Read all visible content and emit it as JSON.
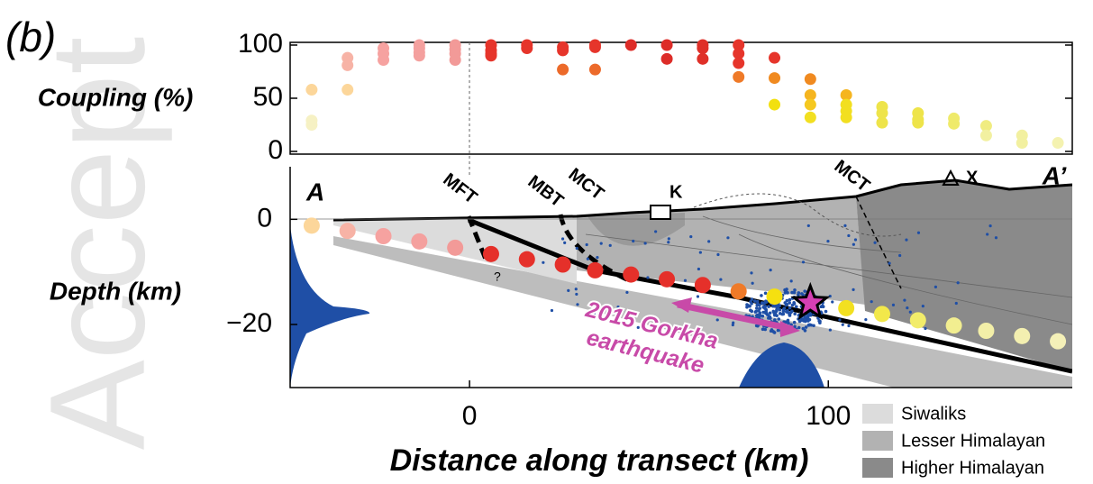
{
  "panel_label": "(b)",
  "watermark": "Accept",
  "chart_data": [
    {
      "type": "scatter",
      "ylabel": "Coupling (%)",
      "xlim": [
        -50,
        168
      ],
      "ylim": [
        0,
        100
      ],
      "yticks": [
        0,
        50,
        100
      ],
      "x": [
        -44,
        -44,
        -44,
        -34,
        -34,
        -34,
        -24,
        -24,
        -24,
        -14,
        -14,
        -14,
        -14,
        -4,
        -4,
        -4,
        -4,
        6,
        6,
        6,
        6,
        16,
        16,
        26,
        26,
        26,
        35,
        35,
        35,
        45,
        55,
        55,
        65,
        65,
        65,
        75,
        75,
        75,
        75,
        85,
        85,
        85,
        95,
        95,
        95,
        95,
        105,
        105,
        105,
        105,
        115,
        115,
        115,
        125,
        125,
        125,
        135,
        135,
        144,
        144,
        154,
        154,
        164
      ],
      "values": [
        58,
        29,
        25,
        88,
        81,
        58,
        97,
        92,
        86,
        100,
        97,
        93,
        90,
        100,
        96,
        92,
        86,
        100,
        95,
        92,
        90,
        100,
        97,
        98,
        95,
        77,
        100,
        98,
        77,
        100,
        100,
        87,
        100,
        97,
        87,
        100,
        92,
        83,
        70,
        88,
        69,
        44,
        68,
        53,
        44,
        32,
        53,
        44,
        38,
        32,
        42,
        36,
        27,
        36,
        30,
        27,
        31,
        26,
        24,
        15,
        15,
        8,
        8
      ],
      "colors": [
        "#fcd69a",
        "#f6f1c4",
        "#f6f1c4",
        "#f7b3a6",
        "#f7b3a6",
        "#fcd69a",
        "#f6a2a0",
        "#f6a2a0",
        "#f6a2a0",
        "#f4a09e",
        "#f4a09e",
        "#f4a09e",
        "#f4a09e",
        "#f29a98",
        "#f29a98",
        "#f29a98",
        "#f29a98",
        "#e6352b",
        "#e6352b",
        "#e6352b",
        "#e6352b",
        "#e6352b",
        "#e6352b",
        "#e6352b",
        "#e6352b",
        "#ec6a2a",
        "#e6352b",
        "#e6352b",
        "#ec6a2a",
        "#dd2c28",
        "#dd2c28",
        "#dd2c28",
        "#df3028",
        "#df3028",
        "#df3028",
        "#e6352b",
        "#e6352b",
        "#e6352b",
        "#ef7a28",
        "#e6352b",
        "#f08a20",
        "#f2e010",
        "#f08a20",
        "#f5b520",
        "#f5c820",
        "#f2df20",
        "#f5b520",
        "#f2df20",
        "#f2df20",
        "#f2df20",
        "#eee44a",
        "#eee44a",
        "#eee44a",
        "#eee44a",
        "#eee44a",
        "#eee44a",
        "#efea6a",
        "#efea6a",
        "#f0ec80",
        "#f2f0a0",
        "#f2f0a0",
        "#f2f0a0",
        "#f4f2b0"
      ]
    },
    {
      "type": "cross-section",
      "ylabel": "Depth (km)",
      "xlabel": "Distance along transect (km)",
      "xlim": [
        -50,
        168
      ],
      "xticks": [
        0,
        100
      ],
      "ylim": [
        -32,
        10
      ],
      "yticks": [
        0,
        {
          "value": -20,
          "label": "−20"
        }
      ],
      "x": [
        -44,
        -34,
        -24,
        -14,
        -4,
        6,
        16,
        26,
        35,
        45,
        55,
        65,
        75,
        85,
        105,
        115,
        125,
        135,
        144,
        154,
        164
      ],
      "values": [
        -1.2,
        -2.2,
        -3.2,
        -4.2,
        -5.4,
        -6.6,
        -7.6,
        -8.6,
        -9.7,
        -10.5,
        -11.4,
        -12.5,
        -13.7,
        -14.7,
        -16.9,
        -18,
        -19.2,
        -20.2,
        -21.2,
        -22.2,
        -23.2
      ],
      "colors": [
        "#fcd69a",
        "#f7b3a6",
        "#f6a2a0",
        "#f4a09e",
        "#f29a98",
        "#e5302a",
        "#e5302a",
        "#e5302a",
        "#e5302a",
        "#e5302a",
        "#e5302a",
        "#e5302a",
        "#ef7a28",
        "#f5e010",
        "#f2e020",
        "#f2e84a",
        "#f2ec6a",
        "#f2ee90",
        "#f3efa8",
        "#f3efb0",
        "#f4f0b8"
      ],
      "star": {
        "x": 95,
        "value": -15.9,
        "color": "#d63fb4"
      },
      "section_labels": {
        "start": "A",
        "end": "A’",
        "mft": "MFT",
        "mbt": "MBT",
        "mct_south": "MCT",
        "mct_north": "MCT",
        "k": "K",
        "x": "X",
        "question": "?"
      },
      "event_label": [
        "2015 Gorkha",
        "earthquake"
      ],
      "legend": [
        {
          "name": "Siwaliks",
          "color": "#dcdcdc"
        },
        {
          "name": "Lesser Himalayan",
          "color": "#b2b2b2"
        },
        {
          "name": "Higher Himalayan",
          "color": "#8a8a8a"
        }
      ]
    }
  ]
}
